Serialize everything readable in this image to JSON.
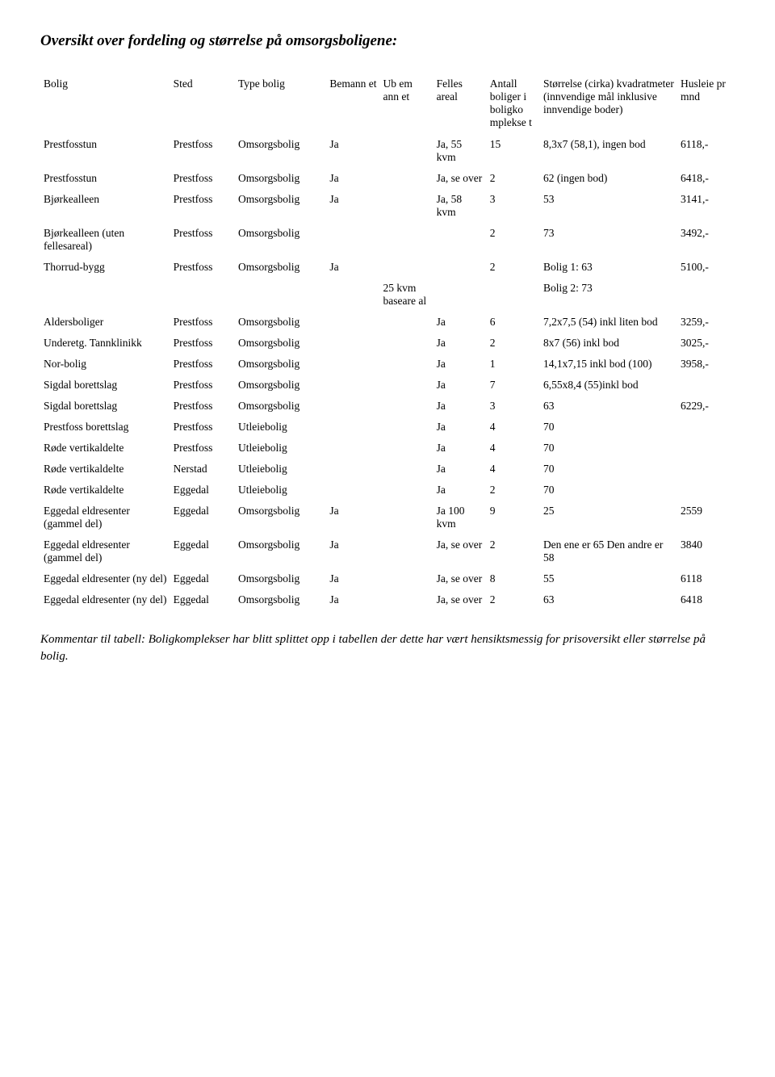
{
  "title": "Oversikt over fordeling og størrelse på omsorgsboligene:",
  "headers": {
    "bolig": "Bolig",
    "sted": "Sted",
    "type": "Type bolig",
    "bemann": "Bemann et",
    "ub": "Ub em ann et",
    "felles": "Felles areal",
    "antall": "Antall boliger i boligko mplekse t",
    "storrelse": "Størrelse (cirka) kvadratmeter (innvendige mål inklusive innvendige boder)",
    "husleie": "Husleie pr mnd"
  },
  "rows": [
    {
      "bolig": "Prestfosstun",
      "sted": "Prestfoss",
      "type": "Omsorgsbolig",
      "bemann": "Ja",
      "ub": "",
      "felles": "Ja, 55 kvm",
      "antall": "15",
      "storrelse": "8,3x7 (58,1), ingen bod",
      "husleie": "6118,-"
    },
    {
      "bolig": "Prestfosstun",
      "sted": "Prestfoss",
      "type": "Omsorgsbolig",
      "bemann": "Ja",
      "ub": "",
      "felles": "Ja, se over",
      "antall": "2",
      "storrelse": "62 (ingen bod)",
      "husleie": "6418,-"
    },
    {
      "bolig": "Bjørkealleen",
      "sted": "Prestfoss",
      "type": "Omsorgsbolig",
      "bemann": "Ja",
      "ub": "",
      "felles": "Ja, 58 kvm",
      "antall": "3",
      "storrelse": "53",
      "husleie": "3141,-"
    },
    {
      "bolig": "Bjørkealleen (uten fellesareal)",
      "sted": "Prestfoss",
      "type": "Omsorgsbolig",
      "bemann": "",
      "ub": "",
      "felles": "",
      "antall": "2",
      "storrelse": "73",
      "husleie": "3492,-"
    },
    {
      "bolig": "Thorrud-bygg",
      "sted": "Prestfoss",
      "type": "Omsorgsbolig",
      "bemann": "Ja",
      "ub": "",
      "felles": "",
      "antall": "2",
      "storrelse": "Bolig 1: 63",
      "husleie": "5100,-"
    },
    {
      "bolig": "",
      "sted": "",
      "type": "",
      "bemann": "",
      "ub": "25 kvm baseare al",
      "felles": "",
      "antall": "",
      "storrelse": "Bolig 2: 73",
      "husleie": ""
    },
    {
      "bolig": "Aldersboliger",
      "sted": "Prestfoss",
      "type": "Omsorgsbolig",
      "bemann": "",
      "ub": "",
      "felles": "Ja",
      "antall": "6",
      "storrelse": "7,2x7,5 (54) inkl liten bod",
      "husleie": "3259,-"
    },
    {
      "bolig": "Underetg. Tannklinikk",
      "sted": "Prestfoss",
      "type": "Omsorgsbolig",
      "bemann": "",
      "ub": "",
      "felles": "Ja",
      "antall": "2",
      "storrelse": "8x7 (56) inkl bod",
      "husleie": "3025,-"
    },
    {
      "bolig": "Nor-bolig",
      "sted": "Prestfoss",
      "type": "Omsorgsbolig",
      "bemann": "",
      "ub": "",
      "felles": "Ja",
      "antall": "1",
      "storrelse": "14,1x7,15 inkl bod (100)",
      "husleie": "3958,-"
    },
    {
      "bolig": "Sigdal borettslag",
      "sted": "Prestfoss",
      "type": "Omsorgsbolig",
      "bemann": "",
      "ub": "",
      "felles": "Ja",
      "antall": "7",
      "storrelse": "6,55x8,4 (55)inkl bod",
      "husleie": ""
    },
    {
      "bolig": "Sigdal borettslag",
      "sted": "Prestfoss",
      "type": "Omsorgsbolig",
      "bemann": "",
      "ub": "",
      "felles": "Ja",
      "antall": "3",
      "storrelse": "63",
      "husleie": "6229,-"
    },
    {
      "bolig": "Prestfoss borettslag",
      "sted": "Prestfoss",
      "type": "Utleiebolig",
      "bemann": "",
      "ub": "",
      "felles": "Ja",
      "antall": "4",
      "storrelse": "70",
      "husleie": ""
    },
    {
      "bolig": "Røde vertikaldelte",
      "sted": "Prestfoss",
      "type": "Utleiebolig",
      "bemann": "",
      "ub": "",
      "felles": "Ja",
      "antall": "4",
      "storrelse": "70",
      "husleie": ""
    },
    {
      "bolig": "Røde vertikaldelte",
      "sted": "Nerstad",
      "type": "Utleiebolig",
      "bemann": "",
      "ub": "",
      "felles": "Ja",
      "antall": "4",
      "storrelse": "70",
      "husleie": ""
    },
    {
      "bolig": "Røde vertikaldelte",
      "sted": "Eggedal",
      "type": "Utleiebolig",
      "bemann": "",
      "ub": "",
      "felles": "Ja",
      "antall": "2",
      "storrelse": "70",
      "husleie": ""
    },
    {
      "bolig": "Eggedal eldresenter (gammel del)",
      "sted": "Eggedal",
      "type": "Omsorgsbolig",
      "bemann": "Ja",
      "ub": "",
      "felles": "Ja 100 kvm",
      "antall": "9",
      "storrelse": "25",
      "husleie": "2559"
    },
    {
      "bolig": "Eggedal eldresenter (gammel del)",
      "sted": "Eggedal",
      "type": "Omsorgsbolig",
      "bemann": "Ja",
      "ub": "",
      "felles": "Ja, se over",
      "antall": "2",
      "storrelse": "Den ene er 65 Den andre er 58",
      "husleie": "3840"
    },
    {
      "bolig": "Eggedal eldresenter (ny del)",
      "sted": "Eggedal",
      "type": "Omsorgsbolig",
      "bemann": "Ja",
      "ub": "",
      "felles": "Ja, se over",
      "antall": "8",
      "storrelse": "55",
      "husleie": "6118"
    },
    {
      "bolig": "Eggedal eldresenter (ny del)",
      "sted": "Eggedal",
      "type": "Omsorgsbolig",
      "bemann": "Ja",
      "ub": "",
      "felles": "Ja, se over",
      "antall": "2",
      "storrelse": "63",
      "husleie": "6418"
    }
  ],
  "footer": "Kommentar til tabell: Boligkomplekser har blitt splittet opp i tabellen der dette har vært hensiktsmessig for prisoversikt eller størrelse på bolig."
}
